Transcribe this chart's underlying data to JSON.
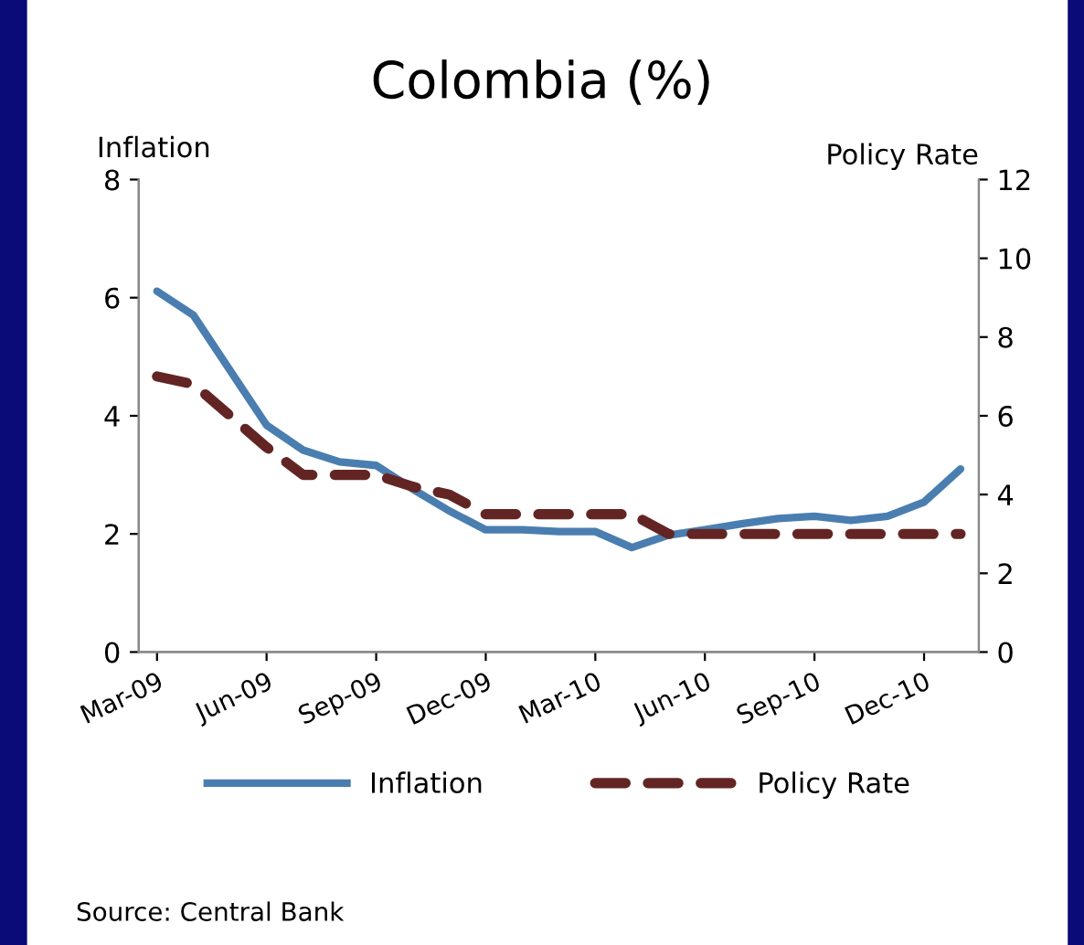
{
  "chart_data": {
    "type": "line",
    "title": "Colombia (%)",
    "ylabel": "Inflation",
    "y2label": "Policy Rate",
    "categories": [
      "Mar-09",
      null,
      null,
      "Jun-09",
      null,
      null,
      "Sep-09",
      null,
      null,
      "Dec-09",
      null,
      null,
      "Mar-10",
      null,
      null,
      "Jun-10",
      null,
      null,
      "Sep-10",
      null,
      null,
      "Dec-10",
      null
    ],
    "series": [
      {
        "name": "Inflation",
        "color": "#4a7eb0",
        "line_style": "solid",
        "values": [
          6.11,
          5.7,
          4.77,
          3.84,
          3.42,
          3.22,
          3.16,
          2.76,
          2.39,
          2.07,
          2.07,
          2.04,
          2.04,
          1.77,
          1.98,
          2.07,
          2.17,
          2.26,
          2.3,
          2.23,
          2.3,
          2.54,
          3.1
        ]
      },
      {
        "name": "Policy Rate",
        "color": "#632523",
        "line_style": "dashed",
        "axis": "y2",
        "values": [
          7.0,
          6.8,
          6.0,
          5.2,
          4.5,
          4.5,
          4.5,
          4.2,
          4.0,
          3.5,
          3.5,
          3.5,
          3.5,
          3.5,
          3.0,
          3.0,
          3.0,
          3.0,
          3.0,
          3.0,
          3.0,
          3.0,
          3.0
        ]
      }
    ],
    "ylim": [
      0,
      8
    ],
    "yticks": [
      0,
      2,
      4,
      6,
      8
    ],
    "y2lim": [
      0,
      12
    ],
    "y2ticks": [
      0,
      2,
      4,
      6,
      8,
      10,
      12
    ],
    "grid": false,
    "legend": "bottom",
    "marker": "none",
    "annotations": [
      "Source: Central Bank"
    ]
  }
}
